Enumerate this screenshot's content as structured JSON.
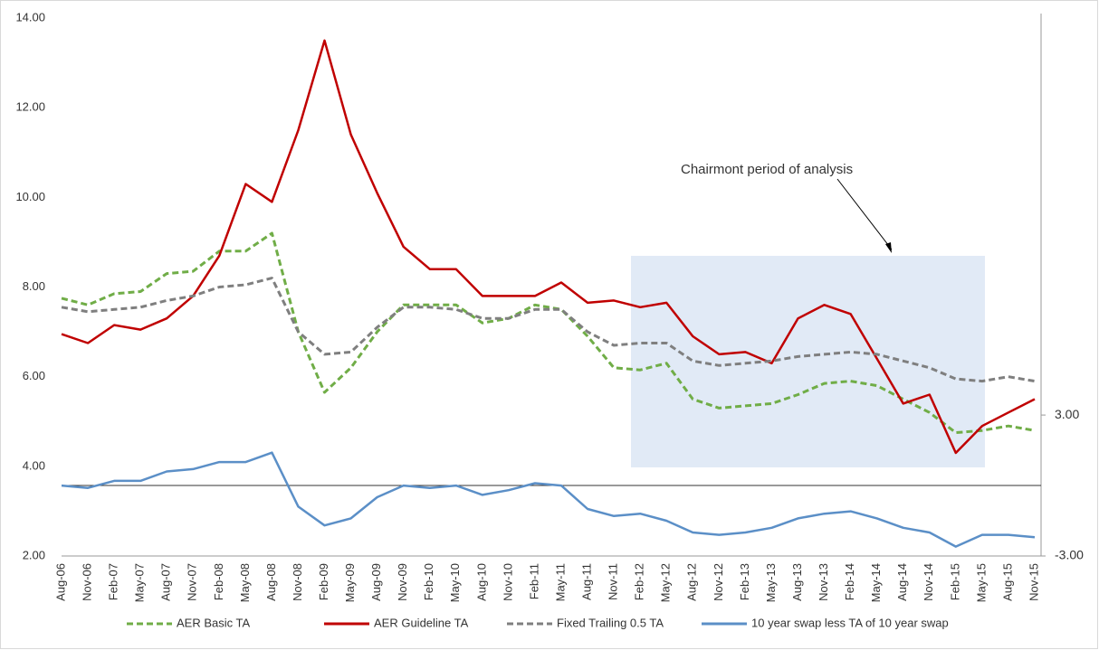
{
  "chart_data": {
    "type": "line",
    "annotation": "Chairmont period of analysis",
    "categories": [
      "Aug-06",
      "Nov-06",
      "Feb-07",
      "May-07",
      "Aug-07",
      "Nov-07",
      "Feb-08",
      "May-08",
      "Aug-08",
      "Nov-08",
      "Feb-09",
      "May-09",
      "Aug-09",
      "Nov-09",
      "Feb-10",
      "May-10",
      "Aug-10",
      "Nov-10",
      "Feb-11",
      "May-11",
      "Aug-11",
      "Nov-11",
      "Feb-12",
      "May-12",
      "Aug-12",
      "Nov-12",
      "Feb-13",
      "May-13",
      "Aug-13",
      "Nov-13",
      "Feb-14",
      "May-14",
      "Aug-14",
      "Nov-14",
      "Feb-15",
      "May-15",
      "Aug-15",
      "Nov-15"
    ],
    "series": [
      {
        "name": "AER Basic TA",
        "color": "#70ad47",
        "dashed": true,
        "values": [
          7.75,
          7.6,
          7.85,
          7.9,
          8.3,
          8.35,
          8.8,
          8.8,
          9.2,
          7.0,
          5.65,
          6.2,
          7.0,
          7.6,
          7.6,
          7.6,
          7.2,
          7.3,
          7.6,
          7.5,
          6.9,
          6.2,
          6.15,
          6.3,
          5.5,
          5.3,
          5.35,
          5.4,
          5.6,
          5.85,
          5.9,
          5.8,
          5.5,
          5.2,
          4.75,
          4.8,
          4.9,
          4.8
        ]
      },
      {
        "name": "AER Guideline TA",
        "color": "#c00000",
        "dashed": false,
        "values": [
          6.95,
          6.75,
          7.15,
          7.05,
          7.3,
          7.8,
          8.7,
          10.3,
          9.9,
          11.5,
          13.5,
          11.4,
          10.1,
          8.9,
          8.4,
          8.4,
          7.8,
          7.8,
          7.8,
          8.1,
          7.65,
          7.7,
          7.55,
          7.65,
          6.9,
          6.5,
          6.55,
          6.3,
          7.3,
          7.6,
          7.4,
          6.4,
          5.4,
          5.6,
          4.3,
          4.9,
          5.2,
          5.5
        ]
      },
      {
        "name": "Fixed Trailing 0.5 TA",
        "color": "#7f7f7f",
        "dashed": true,
        "values": [
          7.55,
          7.45,
          7.5,
          7.55,
          7.7,
          7.8,
          8.0,
          8.05,
          8.2,
          7.0,
          6.5,
          6.55,
          7.1,
          7.55,
          7.55,
          7.5,
          7.3,
          7.3,
          7.5,
          7.5,
          7.0,
          6.7,
          6.75,
          6.75,
          6.35,
          6.25,
          6.3,
          6.35,
          6.45,
          6.5,
          6.55,
          6.5,
          6.35,
          6.2,
          5.95,
          5.9,
          6.0,
          5.9
        ]
      },
      {
        "name": "10 year swap less TA of 10 year swap",
        "color": "#5b8fc7",
        "dashed": false,
        "axis": "y2",
        "values": [
          0.0,
          -0.1,
          0.2,
          0.2,
          0.6,
          0.7,
          1.0,
          1.0,
          1.4,
          -0.9,
          -1.7,
          -1.4,
          -0.5,
          0.0,
          -0.1,
          0.0,
          -0.4,
          -0.2,
          0.1,
          0.0,
          -1.0,
          -1.3,
          -1.2,
          -1.5,
          -2.0,
          -2.1,
          -2.0,
          -1.8,
          -1.4,
          -1.2,
          -1.1,
          -1.4,
          -1.8,
          -2.0,
          -2.6,
          -2.1,
          -2.1,
          -2.2
        ]
      }
    ],
    "ylim": [
      2,
      14
    ],
    "yticks": [
      {
        "value": 2,
        "label": "2.00"
      },
      {
        "value": 4,
        "label": "4.00"
      },
      {
        "value": 6,
        "label": "6.00"
      },
      {
        "value": 8,
        "label": "8.00"
      },
      {
        "value": 10,
        "label": "10.00"
      },
      {
        "value": 12,
        "label": "12.00"
      },
      {
        "value": 14,
        "label": "14.00"
      }
    ],
    "y2lim": [
      -3,
      19.9
    ],
    "y2ticks": [
      {
        "value": -3,
        "label": "-3.00"
      },
      {
        "value": 3,
        "label": "3.00"
      }
    ],
    "legend": "bottom"
  }
}
